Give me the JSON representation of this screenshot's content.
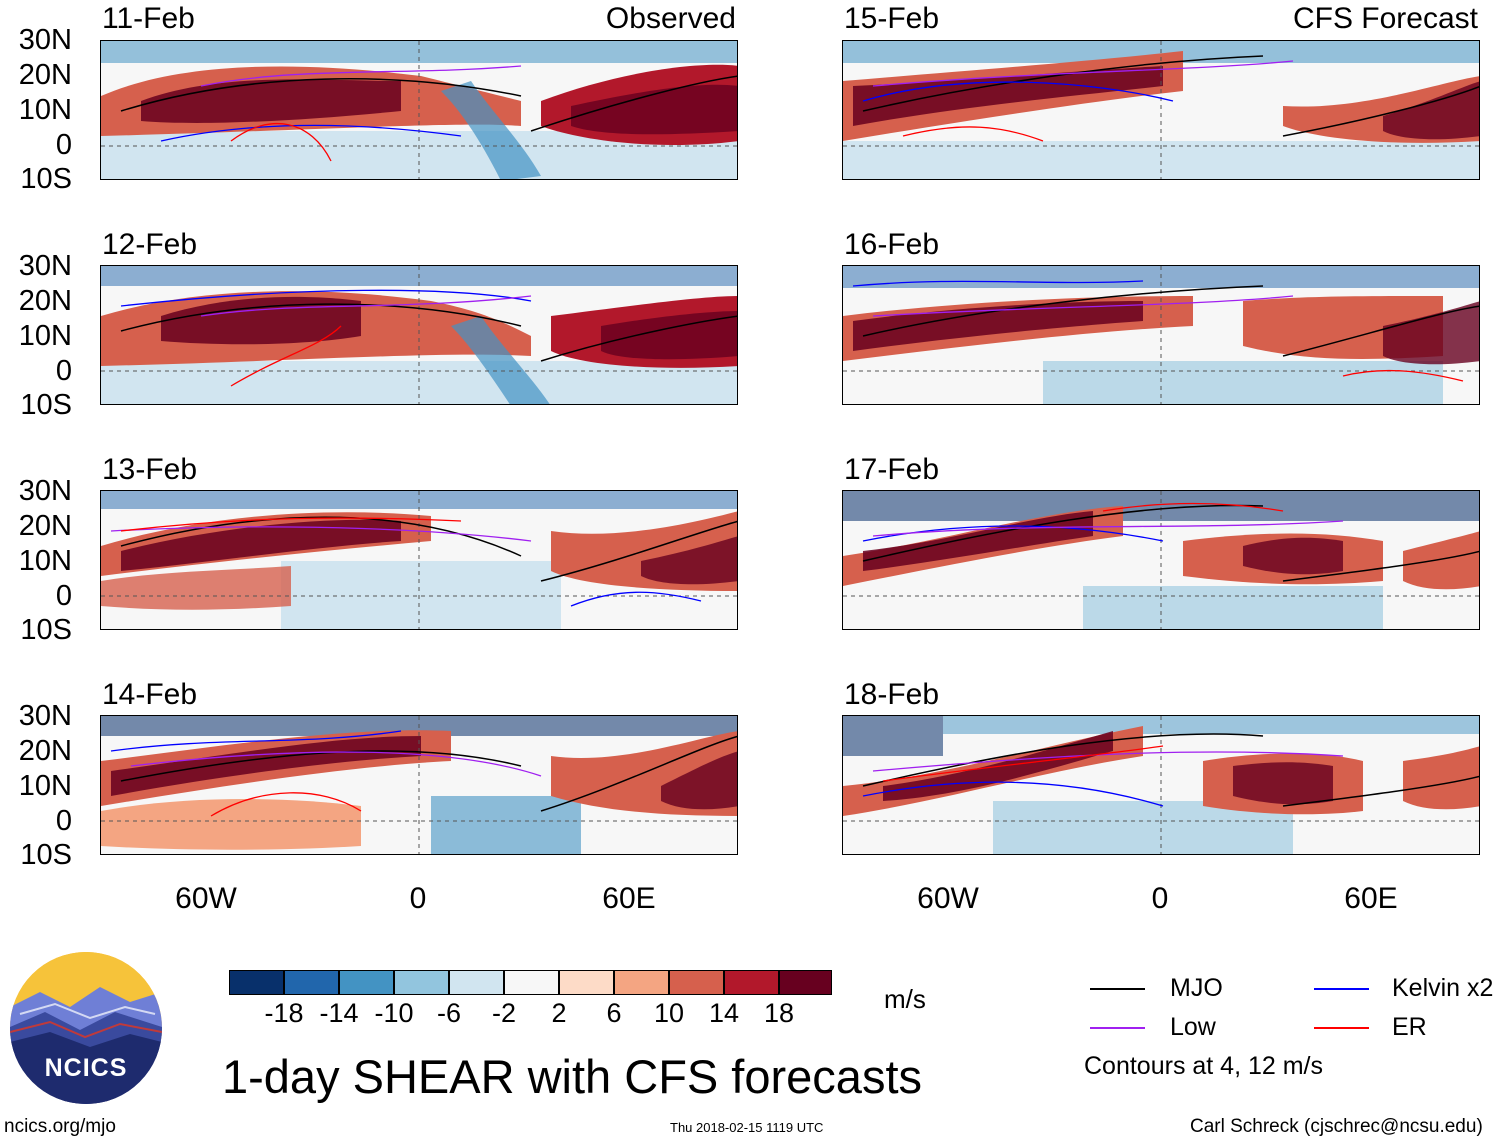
{
  "headers": {
    "left": "Observed",
    "right": "CFS Forecast"
  },
  "latitude_labels": [
    "30N",
    "20N",
    "10N",
    "0",
    "10S"
  ],
  "longitude_labels": [
    "60W",
    "0",
    "60E"
  ],
  "panels_left": [
    {
      "date": "11-Feb"
    },
    {
      "date": "12-Feb"
    },
    {
      "date": "13-Feb"
    },
    {
      "date": "14-Feb"
    }
  ],
  "panels_right": [
    {
      "date": "15-Feb"
    },
    {
      "date": "16-Feb"
    },
    {
      "date": "17-Feb"
    },
    {
      "date": "18-Feb"
    }
  ],
  "colorbar": {
    "unit": "m/s",
    "ticks": [
      "-18",
      "-14",
      "-10",
      "-6",
      "-2",
      "2",
      "6",
      "10",
      "14",
      "18"
    ],
    "colors": [
      "#08306b",
      "#2166ac",
      "#4393c3",
      "#92c5de",
      "#d1e5f0",
      "#f7f7f7",
      "#fddbc7",
      "#f4a582",
      "#d6604d",
      "#b2182b",
      "#67001f"
    ]
  },
  "legend": {
    "items": [
      {
        "label": "MJO",
        "color": "#000000"
      },
      {
        "label": "Kelvin x2",
        "color": "#0000ff"
      },
      {
        "label": "Low",
        "color": "#a020f0"
      },
      {
        "label": "ER",
        "color": "#ff0000"
      }
    ],
    "note": "Contours at 4, 12 m/s"
  },
  "title": "1-day SHEAR with CFS forecasts",
  "logo_text": "NCICS",
  "footer": {
    "url": "ncics.org/mjo",
    "timestamp": "Thu 2018-02-15 1119 UTC",
    "credit": "Carl Schreck (cjschrec@ncsu.edu)"
  }
}
